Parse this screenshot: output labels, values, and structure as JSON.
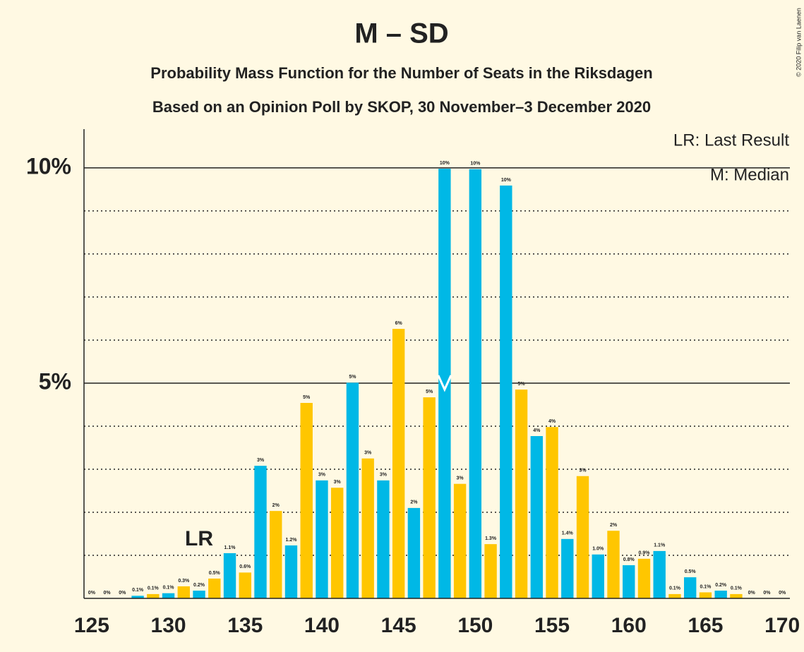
{
  "chart_data": {
    "type": "bar",
    "title": "M – SD",
    "subtitle": "Probability Mass Function for the Number of Seats in the Riksdagen",
    "subtitle2": "Based on an Opinion Poll by SKOP, 30 November–3 December 2020",
    "copyright": "© 2020 Filip van Laenen",
    "legend_lr": "LR: Last Result",
    "legend_m": "M: Median",
    "lr_label": "LR",
    "last_result": 132,
    "median": 148,
    "colors": [
      "#ffc600",
      "#00b8e6"
    ],
    "categories": [
      125,
      126,
      127,
      128,
      129,
      130,
      131,
      132,
      133,
      134,
      135,
      136,
      137,
      138,
      139,
      140,
      141,
      142,
      143,
      144,
      145,
      146,
      147,
      148,
      149,
      150,
      151,
      152,
      153,
      154,
      155,
      156,
      157,
      158,
      159,
      160,
      161,
      162,
      163,
      164,
      165,
      166,
      167,
      168,
      169,
      170
    ],
    "values": [
      0,
      0,
      0,
      0.06,
      0.1,
      0.12,
      0.28,
      0.18,
      0.46,
      1.05,
      0.6,
      3.08,
      2.03,
      1.23,
      4.54,
      2.74,
      2.57,
      5.01,
      3.25,
      2.74,
      6.26,
      2.1,
      4.67,
      9.98,
      2.66,
      9.97,
      1.26,
      9.59,
      4.85,
      3.77,
      3.98,
      1.38,
      2.84,
      1.02,
      1.57,
      0.77,
      0.92,
      1.1,
      0.1,
      0.49,
      0.14,
      0.18,
      0.1,
      0,
      0,
      0
    ],
    "value_labels": [
      "0%",
      "0%",
      "0%",
      "0.1%",
      "0.1%",
      "0.1%",
      "0.3%",
      "0.2%",
      "0.5%",
      "1.1%",
      "0.6%",
      "3%",
      "2%",
      "1.2%",
      "5%",
      "3%",
      "3%",
      "5%",
      "3%",
      "3%",
      "6%",
      "2%",
      "5%",
      "10%",
      "3%",
      "10%",
      "1.3%",
      "10%",
      "5%",
      "4%",
      "4%",
      "1.4%",
      "3%",
      "1.0%",
      "2%",
      "0.8%",
      "0.9%",
      "1.1%",
      "0.1%",
      "0.5%",
      "0.1%",
      "0.2%",
      "0.1%",
      "0%",
      "0%",
      "0%"
    ],
    "xlim": [
      124.5,
      170.5
    ],
    "xticks": [
      125,
      130,
      135,
      140,
      145,
      150,
      155,
      160,
      165,
      170
    ],
    "ylim": [
      0,
      10.9
    ],
    "yticks": [
      {
        "value": 5,
        "label": "5%"
      },
      {
        "value": 10,
        "label": "10%"
      }
    ],
    "minor_yticks": [
      1,
      2,
      3,
      4,
      6,
      7,
      8,
      9
    ],
    "grid": true
  }
}
